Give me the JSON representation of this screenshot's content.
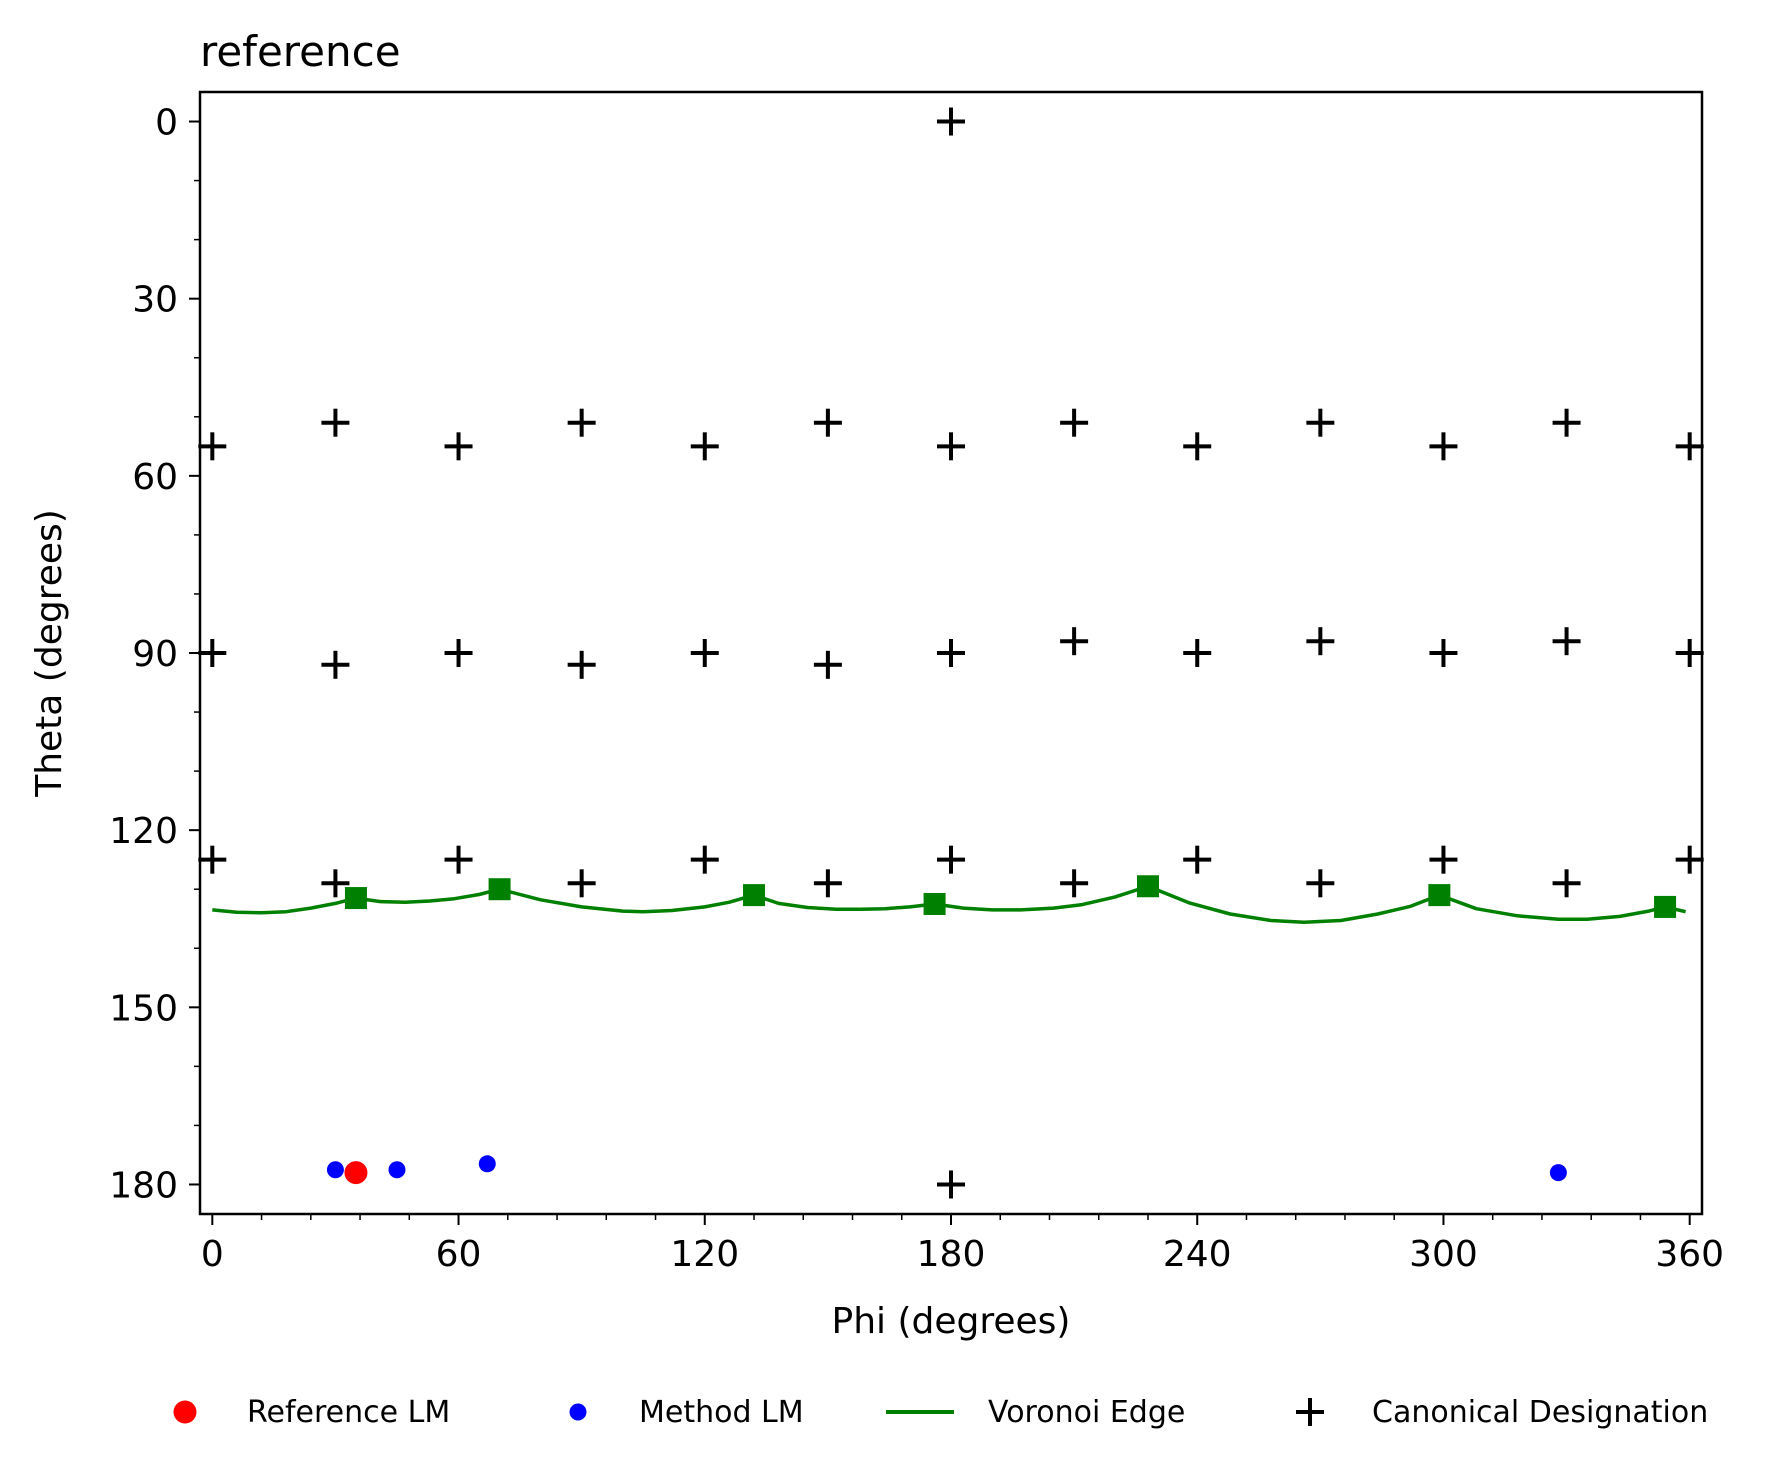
{
  "chart_data": {
    "type": "scatter",
    "title": "reference",
    "xlabel": "Phi (degrees)",
    "ylabel": "Theta (degrees)",
    "xlim": [
      -3,
      363
    ],
    "ylim": [
      185,
      -5
    ],
    "y_inverted": true,
    "xticks": [
      0,
      60,
      120,
      180,
      240,
      300,
      360
    ],
    "yticks": [
      0,
      30,
      60,
      90,
      120,
      150,
      180
    ],
    "x_minor_step": 12,
    "y_minor_step": 10,
    "grid": false,
    "legend_position": "bottom",
    "colors": {
      "reference": "#ff0000",
      "method": "#0000ff",
      "voronoi": "#008000",
      "canonical": "#000000"
    },
    "legend": [
      {
        "key": "reference",
        "label": "Reference LM"
      },
      {
        "key": "method",
        "label": "Method LM"
      },
      {
        "key": "voronoi",
        "label": "Voronoi Edge"
      },
      {
        "key": "canonical",
        "label": "Canonical Designation"
      }
    ],
    "series": [
      {
        "key": "reference",
        "name": "Reference LM",
        "marker": "circle",
        "points": [
          [
            35,
            178
          ]
        ]
      },
      {
        "key": "method",
        "name": "Method LM",
        "marker": "circle",
        "points": [
          [
            30,
            177.5
          ],
          [
            45,
            177.5
          ],
          [
            67,
            176.5
          ],
          [
            328,
            178
          ]
        ]
      },
      {
        "key": "voronoi",
        "name": "Voronoi Edge",
        "marker": "square",
        "vertices": [
          [
            35,
            131.5
          ],
          [
            70,
            130
          ],
          [
            132,
            131
          ],
          [
            176,
            132.5
          ],
          [
            228,
            129.5
          ],
          [
            299,
            131
          ],
          [
            354,
            133
          ]
        ],
        "curve": [
          [
            0,
            133.5
          ],
          [
            6,
            133.9
          ],
          [
            12,
            134
          ],
          [
            18,
            133.8
          ],
          [
            24,
            133.2
          ],
          [
            30,
            132.4
          ],
          [
            35,
            131.5
          ],
          [
            41,
            132.1
          ],
          [
            47,
            132.2
          ],
          [
            53,
            132
          ],
          [
            59,
            131.6
          ],
          [
            65,
            130.9
          ],
          [
            70,
            130
          ],
          [
            80,
            131.8
          ],
          [
            90,
            133
          ],
          [
            100,
            133.7
          ],
          [
            105,
            133.8
          ],
          [
            112,
            133.6
          ],
          [
            120,
            133
          ],
          [
            126,
            132.2
          ],
          [
            132,
            131
          ],
          [
            138,
            132.4
          ],
          [
            145,
            133.1
          ],
          [
            152,
            133.4
          ],
          [
            158,
            133.4
          ],
          [
            164,
            133.3
          ],
          [
            170,
            133
          ],
          [
            176,
            132.5
          ],
          [
            183,
            133.2
          ],
          [
            190,
            133.5
          ],
          [
            197,
            133.5
          ],
          [
            205,
            133.2
          ],
          [
            212,
            132.6
          ],
          [
            220,
            131.3
          ],
          [
            228,
            129.5
          ],
          [
            238,
            132.3
          ],
          [
            248,
            134.2
          ],
          [
            258,
            135.3
          ],
          [
            266,
            135.6
          ],
          [
            275,
            135.3
          ],
          [
            284,
            134.2
          ],
          [
            292,
            132.9
          ],
          [
            299,
            131
          ],
          [
            308,
            133.3
          ],
          [
            318,
            134.5
          ],
          [
            328,
            135.1
          ],
          [
            335,
            135.1
          ],
          [
            343,
            134.6
          ],
          [
            350,
            133.7
          ],
          [
            354,
            133
          ],
          [
            359,
            133.8
          ]
        ]
      },
      {
        "key": "canonical",
        "name": "Canonical Designation",
        "marker": "plus",
        "points": [
          [
            180,
            0
          ],
          [
            0,
            55
          ],
          [
            30,
            51
          ],
          [
            60,
            55
          ],
          [
            90,
            51
          ],
          [
            120,
            55
          ],
          [
            150,
            51
          ],
          [
            180,
            55
          ],
          [
            210,
            51
          ],
          [
            240,
            55
          ],
          [
            270,
            51
          ],
          [
            300,
            55
          ],
          [
            330,
            51
          ],
          [
            360,
            55
          ],
          [
            0,
            90
          ],
          [
            30,
            92
          ],
          [
            60,
            90
          ],
          [
            90,
            92
          ],
          [
            120,
            90
          ],
          [
            150,
            92
          ],
          [
            180,
            90
          ],
          [
            210,
            88
          ],
          [
            240,
            90
          ],
          [
            270,
            88
          ],
          [
            300,
            90
          ],
          [
            330,
            88
          ],
          [
            360,
            90
          ],
          [
            0,
            125
          ],
          [
            30,
            129
          ],
          [
            60,
            125
          ],
          [
            90,
            129
          ],
          [
            120,
            125
          ],
          [
            150,
            129
          ],
          [
            180,
            125
          ],
          [
            210,
            129
          ],
          [
            240,
            125
          ],
          [
            270,
            129
          ],
          [
            300,
            125
          ],
          [
            330,
            129
          ],
          [
            360,
            125
          ],
          [
            180,
            180
          ]
        ]
      }
    ]
  }
}
